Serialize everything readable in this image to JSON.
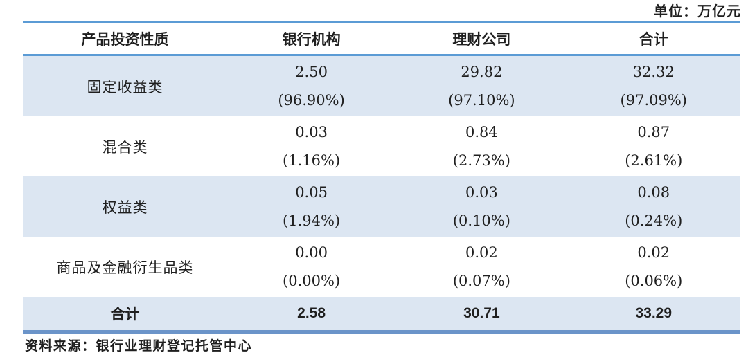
{
  "unit_label": "单位：万亿元",
  "source": "资料来源：银行业理财登记托管中心",
  "colors": {
    "row_shade": "#dce6f2",
    "rule_blue": "#5b9bd5",
    "bottom_rule_blue": "#6b94c9",
    "text": "#1f1f1f"
  },
  "table": {
    "headers": [
      "产品投资性质",
      "银行机构",
      "理财公司",
      "合计"
    ],
    "rows": [
      {
        "label": "固定收益类",
        "cells": [
          {
            "value": "2.50",
            "pct": "(96.90%)"
          },
          {
            "value": "29.82",
            "pct": "(97.10%)"
          },
          {
            "value": "32.32",
            "pct": "(97.09%)"
          }
        ]
      },
      {
        "label": "混合类",
        "cells": [
          {
            "value": "0.03",
            "pct": "(1.16%)"
          },
          {
            "value": "0.84",
            "pct": "(2.73%)"
          },
          {
            "value": "0.87",
            "pct": "(2.61%)"
          }
        ]
      },
      {
        "label": "权益类",
        "cells": [
          {
            "value": "0.05",
            "pct": "(1.94%)"
          },
          {
            "value": "0.03",
            "pct": "(0.10%)"
          },
          {
            "value": "0.08",
            "pct": "(0.24%)"
          }
        ]
      },
      {
        "label": "商品及金融衍生品类",
        "cells": [
          {
            "value": "0.00",
            "pct": "(0.00%)"
          },
          {
            "value": "0.02",
            "pct": "(0.07%)"
          },
          {
            "value": "0.02",
            "pct": "(0.06%)"
          }
        ]
      }
    ],
    "total": {
      "label": "合计",
      "values": [
        "2.58",
        "30.71",
        "33.29"
      ]
    }
  }
}
